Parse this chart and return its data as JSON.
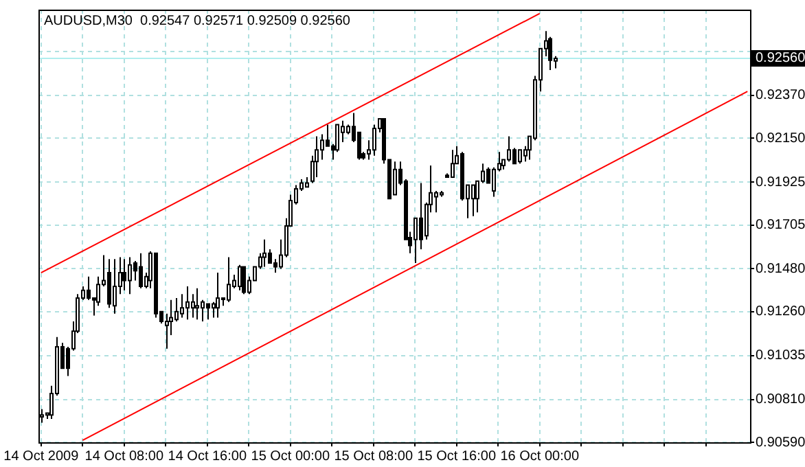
{
  "chart_data": {
    "type": "candlestick",
    "title": "AUDUSD,M30  0.92547 0.92571 0.92509 0.92560",
    "grid": true,
    "legend": false,
    "xlim": [
      "2009-10-13T23:45",
      "2009-10-16T20:15"
    ],
    "xticks": [
      {
        "value": "2009-10-14T00:00",
        "label": "14 Oct 2009"
      },
      {
        "value": "2009-10-14T04:00",
        "label": null
      },
      {
        "value": "2009-10-14T08:00",
        "label": "14 Oct 08:00"
      },
      {
        "value": "2009-10-14T12:00",
        "label": null
      },
      {
        "value": "2009-10-14T16:00",
        "label": "14 Oct 16:00"
      },
      {
        "value": "2009-10-14T20:00",
        "label": null
      },
      {
        "value": "2009-10-15T00:00",
        "label": "15 Oct 00:00"
      },
      {
        "value": "2009-10-15T04:00",
        "label": null
      },
      {
        "value": "2009-10-15T08:00",
        "label": "15 Oct 08:00"
      },
      {
        "value": "2009-10-15T12:00",
        "label": null
      },
      {
        "value": "2009-10-15T16:00",
        "label": "15 Oct 16:00"
      },
      {
        "value": "2009-10-15T20:00",
        "label": null
      },
      {
        "value": "2009-10-16T00:00",
        "label": "16 Oct 00:00"
      },
      {
        "value": "2009-10-16T04:00",
        "label": null
      },
      {
        "value": "2009-10-16T08:00",
        "label": null
      },
      {
        "value": "2009-10-16T12:00",
        "label": null
      },
      {
        "value": "2009-10-16T16:00",
        "label": null
      }
    ],
    "ylim": [
      0.9059,
      0.9281
    ],
    "yticks": [
      {
        "value": 0.9059,
        "label": "0.90590"
      },
      {
        "value": 0.9081,
        "label": "0.90810"
      },
      {
        "value": 0.91035,
        "label": "0.91035"
      },
      {
        "value": 0.9126,
        "label": "0.91260"
      },
      {
        "value": 0.9148,
        "label": "0.91480"
      },
      {
        "value": 0.91705,
        "label": "0.91705"
      },
      {
        "value": 0.91925,
        "label": "0.91925"
      },
      {
        "value": 0.9215,
        "label": "0.92150"
      },
      {
        "value": 0.9237,
        "label": "0.92370"
      },
      {
        "value": 0.92595,
        "label": null
      }
    ],
    "ref_lines": [
      {
        "axis": "y",
        "value": 0.9256,
        "label": "0.92560",
        "color": "#b0eeee"
      }
    ],
    "series": [
      {
        "type": "candlestick",
        "colors": [
          "#ffffff",
          "#ffffff",
          "#ffffff",
          "#ffffff",
          "#000000",
          "#000000",
          "#ffffff",
          "#ffffff",
          "#ffffff",
          "#000000",
          "#000000",
          "#ffffff",
          "#ffffff",
          "#000000",
          "#ffffff",
          "#ffffff",
          "#000000",
          "#ffffff",
          "#000000",
          "#000000",
          "#ffffff",
          "#ffffff",
          "#000000",
          "#000000",
          "#ffffff",
          "#ffffff",
          "#ffffff",
          "#ffffff",
          "#ffffff",
          "#ffffff",
          "#ffffff",
          "#ffffff",
          "#000000",
          "#ffffff",
          "#ffffff",
          "#ffffff",
          "#ffffff",
          "#ffffff",
          "#ffffff",
          "#000000",
          "#ffffff",
          "#ffffff",
          "#ffffff",
          "#ffffff",
          "#000000",
          "#000000",
          "#ffffff",
          "#ffffff",
          "#ffffff",
          "#ffffff",
          "#ffffff",
          "#ffffff",
          "#ffffff",
          "#ffffff",
          "#ffffff",
          "#000000",
          "#000000",
          "#ffffff",
          "#ffffff",
          "#ffffff",
          "#000000",
          "#000000",
          "#000000",
          "#ffffff",
          "#ffffff",
          "#ffffff",
          "#000000",
          "#000000",
          "#ffffff",
          "#000000",
          "#000000",
          "#000000",
          "#ffffff",
          "#000000",
          "#ffffff",
          "#ffffff",
          "#ffffff",
          "#ffffff",
          "#000000",
          "#ffffff",
          "#ffffff",
          "#000000",
          "#ffffff",
          "#ffffff",
          "#ffffff",
          "#ffffff",
          "#000000",
          "#ffffff",
          "#ffffff",
          "#ffffff",
          "#ffffff",
          "#000000",
          "#ffffff",
          "#ffffff",
          "#ffffff",
          "#ffffff",
          "#ffffff",
          "#ffffff",
          "#000000",
          "#ffffff"
        ],
        "x": [
          "2009-10-14T00:00",
          "2009-10-14T00:30",
          "2009-10-14T01:00",
          "2009-10-14T01:30",
          "2009-10-14T02:00",
          "2009-10-14T02:30",
          "2009-10-14T03:00",
          "2009-10-14T03:30",
          "2009-10-14T04:00",
          "2009-10-14T04:30",
          "2009-10-14T05:00",
          "2009-10-14T05:30",
          "2009-10-14T06:00",
          "2009-10-14T06:30",
          "2009-10-14T07:00",
          "2009-10-14T07:30",
          "2009-10-14T08:00",
          "2009-10-14T08:30",
          "2009-10-14T09:00",
          "2009-10-14T09:30",
          "2009-10-14T10:00",
          "2009-10-14T10:30",
          "2009-10-14T11:00",
          "2009-10-14T11:30",
          "2009-10-14T12:00",
          "2009-10-14T12:30",
          "2009-10-14T13:00",
          "2009-10-14T13:30",
          "2009-10-14T14:00",
          "2009-10-14T14:30",
          "2009-10-14T15:00",
          "2009-10-14T15:30",
          "2009-10-14T16:00",
          "2009-10-14T16:30",
          "2009-10-14T17:00",
          "2009-10-14T17:30",
          "2009-10-14T18:00",
          "2009-10-14T18:30",
          "2009-10-14T19:00",
          "2009-10-14T19:30",
          "2009-10-14T20:00",
          "2009-10-14T20:30",
          "2009-10-14T21:00",
          "2009-10-14T21:30",
          "2009-10-14T22:00",
          "2009-10-14T22:30",
          "2009-10-14T23:00",
          "2009-10-14T23:30",
          "2009-10-15T00:00",
          "2009-10-15T00:30",
          "2009-10-15T01:00",
          "2009-10-15T01:30",
          "2009-10-15T02:00",
          "2009-10-15T02:30",
          "2009-10-15T03:00",
          "2009-10-15T03:30",
          "2009-10-15T04:00",
          "2009-10-15T04:30",
          "2009-10-15T05:00",
          "2009-10-15T05:30",
          "2009-10-15T06:00",
          "2009-10-15T06:30",
          "2009-10-15T07:00",
          "2009-10-15T07:30",
          "2009-10-15T08:00",
          "2009-10-15T08:30",
          "2009-10-15T09:00",
          "2009-10-15T09:30",
          "2009-10-15T10:00",
          "2009-10-15T10:30",
          "2009-10-15T11:00",
          "2009-10-15T11:30",
          "2009-10-15T12:00",
          "2009-10-15T12:30",
          "2009-10-15T13:00",
          "2009-10-15T13:30",
          "2009-10-15T14:00",
          "2009-10-15T14:30",
          "2009-10-15T15:00",
          "2009-10-15T15:30",
          "2009-10-15T16:00",
          "2009-10-15T16:30",
          "2009-10-15T17:00",
          "2009-10-15T17:30",
          "2009-10-15T18:00",
          "2009-10-15T18:30",
          "2009-10-15T19:00",
          "2009-10-15T19:30",
          "2009-10-15T20:00",
          "2009-10-15T20:30",
          "2009-10-15T21:00",
          "2009-10-15T21:30",
          "2009-10-15T22:00",
          "2009-10-15T22:30",
          "2009-10-15T23:00",
          "2009-10-15T23:30",
          "2009-10-16T00:00",
          "2009-10-16T00:30",
          "2009-10-16T01:00",
          "2009-10-16T01:30"
        ],
        "ohlc": [
          [
            0.9072,
            0.9076,
            0.9069,
            0.9073
          ],
          [
            0.9073,
            0.9074,
            0.9071,
            0.9074
          ],
          [
            0.9073,
            0.9088,
            0.9071,
            0.9084
          ],
          [
            0.9084,
            0.9113,
            0.9083,
            0.9108
          ],
          [
            0.9108,
            0.911,
            0.9097,
            0.9097
          ],
          [
            0.9107,
            0.9108,
            0.9093,
            0.9097
          ],
          [
            0.9107,
            0.9121,
            0.9106,
            0.9116
          ],
          [
            0.9116,
            0.9135,
            0.9115,
            0.9133
          ],
          [
            0.9133,
            0.9139,
            0.9132,
            0.9137
          ],
          [
            0.9137,
            0.9144,
            0.9132,
            0.9133
          ],
          [
            0.9133,
            0.9133,
            0.9124,
            0.9132
          ],
          [
            0.9131,
            0.9144,
            0.9129,
            0.914
          ],
          [
            0.914,
            0.9155,
            0.9139,
            0.9142
          ],
          [
            0.9146,
            0.9153,
            0.9128,
            0.913
          ],
          [
            0.9129,
            0.9153,
            0.9125,
            0.9139
          ],
          [
            0.9139,
            0.9154,
            0.9135,
            0.9146
          ],
          [
            0.9146,
            0.9153,
            0.9137,
            0.9142
          ],
          [
            0.9142,
            0.9154,
            0.9135,
            0.915
          ],
          [
            0.9151,
            0.9152,
            0.9142,
            0.9147
          ],
          [
            0.9149,
            0.9156,
            0.9138,
            0.9139
          ],
          [
            0.9139,
            0.9146,
            0.9138,
            0.9144
          ],
          [
            0.9142,
            0.9157,
            0.9138,
            0.9156
          ],
          [
            0.9156,
            0.9156,
            0.9123,
            0.9125
          ],
          [
            0.9126,
            0.9126,
            0.912,
            0.9121
          ],
          [
            0.9119,
            0.9125,
            0.9107,
            0.9121
          ],
          [
            0.9121,
            0.9132,
            0.9114,
            0.9123
          ],
          [
            0.9122,
            0.9133,
            0.9121,
            0.9126
          ],
          [
            0.9125,
            0.9135,
            0.9123,
            0.9128
          ],
          [
            0.9128,
            0.9139,
            0.9122,
            0.9131
          ],
          [
            0.9128,
            0.9135,
            0.9123,
            0.9131
          ],
          [
            0.9128,
            0.9138,
            0.9122,
            0.9129
          ],
          [
            0.9128,
            0.9132,
            0.9121,
            0.9131
          ],
          [
            0.913,
            0.913,
            0.9122,
            0.9128
          ],
          [
            0.9128,
            0.9131,
            0.9123,
            0.913
          ],
          [
            0.9128,
            0.9146,
            0.9123,
            0.9133
          ],
          [
            0.9133,
            0.9133,
            0.9129,
            0.9133
          ],
          [
            0.9132,
            0.9154,
            0.9131,
            0.914
          ],
          [
            0.9139,
            0.9145,
            0.9138,
            0.9142
          ],
          [
            0.9139,
            0.915,
            0.9137,
            0.9149
          ],
          [
            0.9149,
            0.9149,
            0.9135,
            0.9136
          ],
          [
            0.9136,
            0.9144,
            0.9135,
            0.9142
          ],
          [
            0.9142,
            0.9149,
            0.9142,
            0.9149
          ],
          [
            0.9149,
            0.9156,
            0.9148,
            0.9154
          ],
          [
            0.9154,
            0.9163,
            0.9149,
            0.9156
          ],
          [
            0.9156,
            0.9158,
            0.9151,
            0.9151
          ],
          [
            0.9151,
            0.9153,
            0.9146,
            0.9149
          ],
          [
            0.9149,
            0.9163,
            0.9148,
            0.9155
          ],
          [
            0.9155,
            0.9174,
            0.9154,
            0.917
          ],
          [
            0.917,
            0.9186,
            0.917,
            0.9183
          ],
          [
            0.9182,
            0.9191,
            0.9181,
            0.9189
          ],
          [
            0.9189,
            0.9194,
            0.9188,
            0.9192
          ],
          [
            0.919,
            0.9195,
            0.919,
            0.9192
          ],
          [
            0.9193,
            0.9206,
            0.9192,
            0.9203
          ],
          [
            0.9203,
            0.9216,
            0.9195,
            0.9209
          ],
          [
            0.9209,
            0.9217,
            0.9204,
            0.9214
          ],
          [
            0.9214,
            0.9222,
            0.9211,
            0.9211
          ],
          [
            0.9211,
            0.9212,
            0.9204,
            0.9209
          ],
          [
            0.9209,
            0.9222,
            0.9208,
            0.9222
          ],
          [
            0.9218,
            0.9224,
            0.9213,
            0.9221
          ],
          [
            0.9218,
            0.9222,
            0.9217,
            0.9221
          ],
          [
            0.9221,
            0.9228,
            0.9213,
            0.9214
          ],
          [
            0.9218,
            0.9218,
            0.9204,
            0.9205
          ],
          [
            0.9207,
            0.9208,
            0.9204,
            0.9205
          ],
          [
            0.9207,
            0.9214,
            0.9204,
            0.9209
          ],
          [
            0.9209,
            0.9222,
            0.9206,
            0.922
          ],
          [
            0.922,
            0.9225,
            0.9218,
            0.9225
          ],
          [
            0.9225,
            0.9225,
            0.9202,
            0.9204
          ],
          [
            0.9204,
            0.9204,
            0.9184,
            0.9184
          ],
          [
            0.9186,
            0.9203,
            0.9186,
            0.9199
          ],
          [
            0.9199,
            0.9203,
            0.9191,
            0.9192
          ],
          [
            0.9193,
            0.9194,
            0.9163,
            0.9163
          ],
          [
            0.9164,
            0.9167,
            0.9156,
            0.916
          ],
          [
            0.9163,
            0.9174,
            0.9151,
            0.9174
          ],
          [
            0.9174,
            0.9192,
            0.9158,
            0.9163
          ],
          [
            0.9165,
            0.9182,
            0.9163,
            0.9181
          ],
          [
            0.9181,
            0.9201,
            0.9177,
            0.9187
          ],
          [
            0.9185,
            0.9188,
            0.9177,
            0.9187
          ],
          [
            0.9186,
            0.9188,
            0.9185,
            0.9187
          ],
          [
            0.9196,
            0.9197,
            0.9195,
            0.9195
          ],
          [
            0.9195,
            0.9209,
            0.9195,
            0.9202
          ],
          [
            0.9202,
            0.9211,
            0.9202,
            0.9206
          ],
          [
            0.9207,
            0.9208,
            0.9183,
            0.9184
          ],
          [
            0.9184,
            0.9191,
            0.9174,
            0.9191
          ],
          [
            0.9184,
            0.9191,
            0.9175,
            0.9191
          ],
          [
            0.9184,
            0.9193,
            0.9177,
            0.9193
          ],
          [
            0.9193,
            0.9202,
            0.9192,
            0.9198
          ],
          [
            0.9199,
            0.92,
            0.9192,
            0.9192
          ],
          [
            0.9188,
            0.92,
            0.9185,
            0.9199
          ],
          [
            0.9199,
            0.9208,
            0.9198,
            0.9202
          ],
          [
            0.9201,
            0.9204,
            0.9199,
            0.9204
          ],
          [
            0.9204,
            0.9216,
            0.9203,
            0.9209
          ],
          [
            0.9209,
            0.921,
            0.9202,
            0.9202
          ],
          [
            0.9203,
            0.9209,
            0.9202,
            0.9209
          ],
          [
            0.9206,
            0.9211,
            0.9203,
            0.9209
          ],
          [
            0.9209,
            0.9216,
            0.9204,
            0.9216
          ],
          [
            0.9215,
            0.9247,
            0.9214,
            0.9245
          ],
          [
            0.9245,
            0.9261,
            0.9239,
            0.9261
          ],
          [
            0.9261,
            0.927,
            0.9257,
            0.9265
          ],
          [
            0.9266,
            0.9267,
            0.925,
            0.9255
          ],
          [
            0.92547,
            0.92571,
            0.92509,
            0.9256
          ]
        ]
      },
      {
        "type": "line",
        "color": "#ff0000",
        "x": [
          "2009-10-14T00:00",
          "2009-10-16T00:00"
        ],
        "values": [
          0.9146,
          0.9279
        ]
      },
      {
        "type": "line",
        "color": "#ff0000",
        "x": [
          "2009-10-14T04:00",
          "2009-10-16T20:00"
        ],
        "values": [
          0.906,
          0.9239
        ]
      }
    ]
  }
}
